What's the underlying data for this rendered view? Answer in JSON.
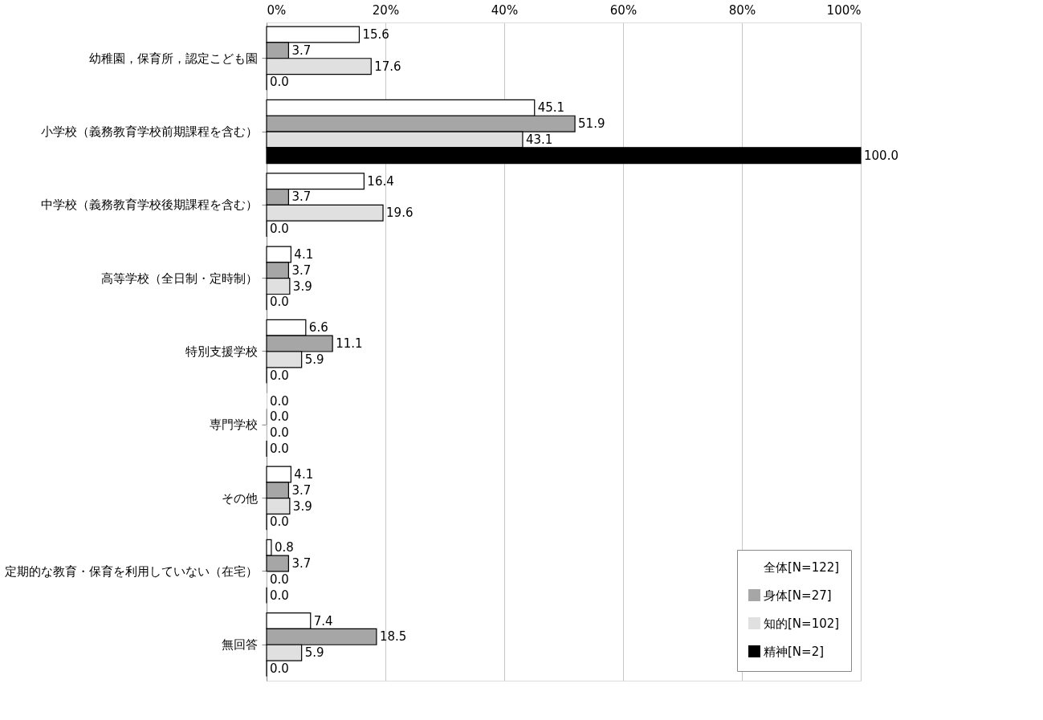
{
  "chart_data": {
    "type": "bar",
    "orientation": "horizontal",
    "categories": [
      "幼稚園，保育所，認定こども園",
      "小学校（義務教育学校前期課程を含む）",
      "中学校（義務教育学校後期課程を含む）",
      "高等学校（全日制・定時制）",
      "特別支援学校",
      "専門学校",
      "その他",
      "定期的な教育・保育を利用していない（在宅）",
      "無回答"
    ],
    "series": [
      {
        "name": "全体[N=122]",
        "color": "#ffffff",
        "values": [
          15.6,
          45.1,
          16.4,
          4.1,
          6.6,
          0,
          4.1,
          0.8,
          7.4
        ],
        "value_labels": [
          "15.6",
          "45.1",
          "16.4",
          "4.1",
          "6.6",
          "0.0",
          "4.1",
          "0.8",
          "7.4"
        ]
      },
      {
        "name": "身体[N=27]",
        "color": "#a6a6a6",
        "values": [
          3.7,
          51.9,
          3.7,
          3.7,
          11.1,
          0,
          3.7,
          3.7,
          18.5
        ],
        "value_labels": [
          "3.7",
          "51.9",
          "3.7",
          "3.7",
          "11.1",
          "0.0",
          "3.7",
          "3.7",
          "18.5"
        ]
      },
      {
        "name": "知的[N=102]",
        "color": "#e0e0e0",
        "values": [
          17.6,
          43.1,
          19.6,
          3.9,
          5.9,
          0,
          3.9,
          0,
          5.9
        ],
        "value_labels": [
          "17.6",
          "43.1",
          "19.6",
          "3.9",
          "5.9",
          "0.0",
          "3.9",
          "0.0",
          "5.9"
        ]
      },
      {
        "name": "精神[N=2]",
        "color": "#000000",
        "values": [
          0,
          100,
          0,
          0,
          0,
          0,
          0,
          0,
          0
        ],
        "value_labels": [
          "0.0",
          "100.0",
          "0.0",
          "0.0",
          "0.0",
          "0.0",
          "0.0",
          "0.0",
          "0.0"
        ]
      }
    ],
    "xlim": [
      0,
      100
    ],
    "xticks": [
      {
        "value": 0,
        "label": "0%"
      },
      {
        "value": 20,
        "label": "20%"
      },
      {
        "value": 40,
        "label": "40%"
      },
      {
        "value": 60,
        "label": "60%"
      },
      {
        "value": 80,
        "label": "80%"
      },
      {
        "value": 100,
        "label": "100%"
      }
    ],
    "grid": "x",
    "legend": "bottom right"
  }
}
